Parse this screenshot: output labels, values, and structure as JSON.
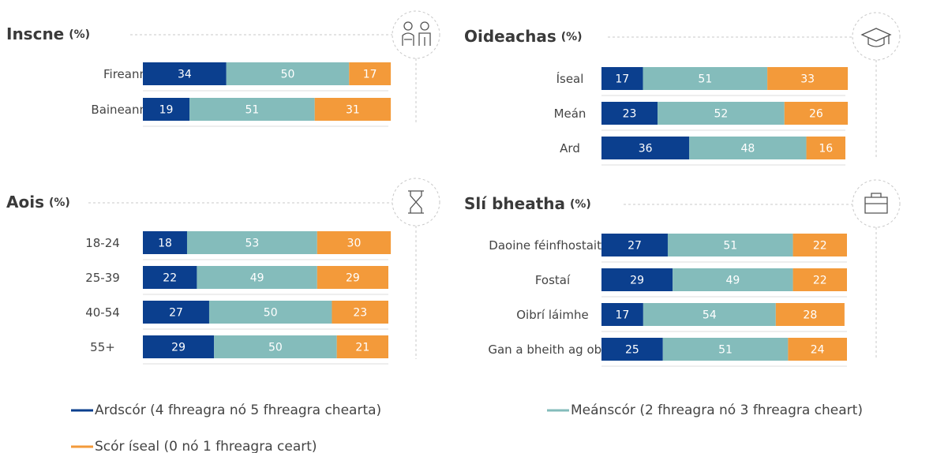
{
  "legend": [
    {
      "name": "Ardscór (4 fhreagra nó 5 fhreagra chearta)",
      "color": "#0b3f8e"
    },
    {
      "name": "Meánscór (2 fhreagra nó 3 fhreagra cheart)",
      "color": "#84bcbb"
    },
    {
      "name": "Scór íseal (0 nó 1 fhreagra ceart)",
      "color": "#f39a3a"
    }
  ],
  "chart_data": [
    {
      "type": "stacked-bar",
      "title": "Inscne",
      "unit": "(%)",
      "xlim": [
        0,
        100
      ],
      "categories": [
        "Fireann",
        "Baineann"
      ],
      "series": [
        {
          "values": [
            34,
            19
          ]
        },
        {
          "values": [
            50,
            51
          ]
        },
        {
          "values": [
            17,
            31
          ]
        }
      ]
    },
    {
      "type": "stacked-bar",
      "title": "Oideachas",
      "unit": "(%)",
      "xlim": [
        0,
        100
      ],
      "categories": [
        "Íseal",
        "Meán",
        "Ard"
      ],
      "series": [
        {
          "values": [
            17,
            23,
            36
          ]
        },
        {
          "values": [
            51,
            52,
            48
          ]
        },
        {
          "values": [
            33,
            26,
            16
          ]
        }
      ]
    },
    {
      "type": "stacked-bar",
      "title": "Aois",
      "unit": "(%)",
      "xlim": [
        0,
        100
      ],
      "categories": [
        "18-24",
        "25-39",
        "40-54",
        "55+"
      ],
      "series": [
        {
          "values": [
            18,
            22,
            27,
            29
          ]
        },
        {
          "values": [
            53,
            49,
            50,
            50
          ]
        },
        {
          "values": [
            30,
            29,
            23,
            21
          ]
        }
      ]
    },
    {
      "type": "stacked-bar",
      "title": "Slí bheatha",
      "unit": "(%)",
      "xlim": [
        0,
        100
      ],
      "categories": [
        "Daoine féinfhostaithe",
        "Fostaí",
        "Oibrí láimhe",
        "Gan a bheith ag obair"
      ],
      "series": [
        {
          "values": [
            27,
            29,
            17,
            25
          ]
        },
        {
          "values": [
            51,
            49,
            54,
            51
          ]
        },
        {
          "values": [
            22,
            22,
            28,
            24
          ]
        }
      ]
    }
  ]
}
